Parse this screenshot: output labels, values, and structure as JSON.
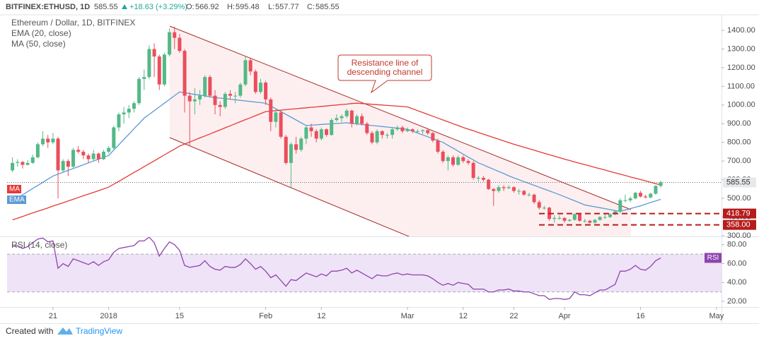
{
  "header": {
    "symbol": "BITFINEX:ETHUSD, 1D",
    "change": "+18.63 (+3.29%)",
    "ohlc_labels": [
      "O:",
      "H:",
      "L:",
      "C:"
    ]
  },
  "annotation": {
    "lines": [
      "Resistance line of",
      "descending channel"
    ]
  },
  "footer": {
    "prefix": "Created with",
    "brand": "TradingView"
  },
  "chart_data": {
    "type": "candlestick",
    "title": "Ethereum / Dollar, 1D, BITFINEX",
    "up_color": "#53b987",
    "down_color": "#eb4d5c",
    "ylim": [
      300,
      1470
    ],
    "yticks": [
      {
        "value": 300,
        "label": "300.00"
      },
      {
        "value": 400,
        "label": "400.00"
      },
      {
        "value": 500,
        "label": "500.00"
      },
      {
        "value": 600,
        "label": "600.00"
      },
      {
        "value": 700,
        "label": "700.00"
      },
      {
        "value": 800,
        "label": "800.00"
      },
      {
        "value": 900,
        "label": "900.00"
      },
      {
        "value": 1000,
        "label": "1000.00"
      },
      {
        "value": 1100,
        "label": "1100.00"
      },
      {
        "value": 1200,
        "label": "1200.00"
      },
      {
        "value": 1300,
        "label": "1300.00"
      },
      {
        "value": 1400,
        "label": "1400.00"
      }
    ],
    "grid": false,
    "hlines": [
      418.79,
      {
        "value": 358,
        "label": "358.00"
      }
    ],
    "hline_color": "#b71c1c",
    "categories": [
      null,
      null,
      null,
      null,
      null,
      null,
      null,
      null,
      "21",
      null,
      null,
      null,
      null,
      null,
      null,
      null,
      null,
      null,
      null,
      "2018",
      null,
      null,
      null,
      null,
      null,
      null,
      null,
      null,
      null,
      null,
      null,
      null,
      null,
      "15",
      null,
      null,
      null,
      null,
      null,
      null,
      null,
      null,
      null,
      null,
      null,
      null,
      null,
      null,
      null,
      null,
      "Feb",
      null,
      null,
      null,
      null,
      null,
      null,
      null,
      null,
      null,
      null,
      "12",
      null,
      null,
      null,
      null,
      null,
      null,
      null,
      null,
      null,
      null,
      null,
      null,
      null,
      null,
      null,
      null,
      "Mar",
      null,
      null,
      null,
      null,
      null,
      null,
      null,
      null,
      null,
      null,
      "12",
      null,
      null,
      null,
      null,
      null,
      null,
      null,
      null,
      null,
      "22",
      null,
      null,
      null,
      null,
      null,
      null,
      null,
      null,
      null,
      "Apr",
      null,
      null,
      null,
      null,
      null,
      null,
      null,
      null,
      null,
      null,
      null,
      null,
      null,
      null,
      "16",
      null,
      null,
      null,
      null,
      null,
      null,
      null,
      null,
      null,
      null,
      null,
      null,
      null,
      null,
      "May",
      null
    ],
    "open": [
      650,
      690,
      695,
      680,
      690,
      720,
      790,
      820,
      800,
      820,
      650,
      700,
      670,
      760,
      750,
      730,
      710,
      740,
      710,
      750,
      770,
      880,
      950,
      960,
      980,
      1010,
      1140,
      1150,
      1300,
      1260,
      1110,
      1270,
      1390,
      1360,
      1290,
      1050,
      1020,
      1030,
      1050,
      1150,
      1050,
      1000,
      990,
      1060,
      1050,
      1050,
      1110,
      1240,
      1180,
      1070,
      1120,
      1030,
      910,
      960,
      830,
      690,
      790,
      760,
      820,
      880,
      860,
      820,
      870,
      840,
      920,
      930,
      940,
      970,
      900,
      940,
      900,
      850,
      800,
      860,
      840,
      840,
      870,
      880,
      860,
      870,
      860,
      860,
      865,
      850,
      810,
      750,
      700,
      720,
      680,
      720,
      700,
      690,
      610,
      610,
      600,
      550,
      540,
      560,
      555,
      560,
      540,
      540,
      520,
      520,
      480,
      450,
      450,
      390,
      395,
      395,
      380,
      385,
      415,
      380,
      380,
      370,
      385,
      400,
      400,
      415,
      430,
      490,
      490,
      500,
      530,
      510,
      505,
      525,
      566.92,
      null,
      null,
      null,
      null,
      null,
      null,
      null,
      null,
      null,
      null,
      null,
      null
    ],
    "high": [
      720,
      710,
      700,
      705,
      735,
      800,
      860,
      840,
      850,
      830,
      710,
      710,
      770,
      780,
      760,
      740,
      760,
      745,
      760,
      780,
      890,
      960,
      990,
      1000,
      1020,
      1150,
      1190,
      1320,
      1330,
      1270,
      1280,
      1410,
      1420,
      1380,
      1300,
      1070,
      1090,
      1080,
      1160,
      1160,
      1080,
      1020,
      1070,
      1080,
      1070,
      1120,
      1260,
      1250,
      1190,
      1140,
      1130,
      1040,
      980,
      970,
      840,
      800,
      830,
      830,
      890,
      900,
      870,
      880,
      875,
      930,
      950,
      950,
      980,
      975,
      950,
      955,
      910,
      860,
      870,
      865,
      850,
      880,
      890,
      890,
      880,
      875,
      870,
      870,
      870,
      855,
      820,
      760,
      730,
      730,
      730,
      730,
      710,
      700,
      620,
      620,
      605,
      555,
      570,
      570,
      570,
      565,
      550,
      545,
      530,
      525,
      490,
      460,
      455,
      410,
      410,
      400,
      390,
      420,
      420,
      390,
      385,
      390,
      405,
      420,
      420,
      435,
      500,
      520,
      510,
      535,
      540,
      520,
      530,
      570,
      595.48,
      null,
      null,
      null,
      null,
      null,
      null,
      null,
      null,
      null,
      null,
      null,
      null
    ],
    "low": [
      640,
      670,
      660,
      675,
      685,
      715,
      780,
      770,
      790,
      500,
      640,
      620,
      660,
      740,
      710,
      690,
      700,
      690,
      705,
      740,
      760,
      860,
      900,
      930,
      960,
      1000,
      1080,
      1140,
      1150,
      1080,
      1100,
      1260,
      1300,
      1280,
      960,
      780,
      950,
      1000,
      1040,
      1040,
      950,
      940,
      980,
      1030,
      1010,
      1040,
      1100,
      1160,
      1060,
      1060,
      1000,
      860,
      880,
      820,
      680,
      560,
      740,
      750,
      790,
      830,
      800,
      810,
      830,
      835,
      910,
      910,
      930,
      880,
      890,
      890,
      840,
      790,
      790,
      820,
      820,
      820,
      860,
      850,
      855,
      850,
      850,
      845,
      840,
      800,
      740,
      690,
      650,
      670,
      675,
      690,
      680,
      600,
      590,
      590,
      545,
      460,
      530,
      540,
      550,
      530,
      520,
      515,
      510,
      470,
      440,
      440,
      380,
      370,
      385,
      370,
      375,
      380,
      375,
      370,
      365,
      365,
      380,
      390,
      395,
      410,
      420,
      480,
      480,
      495,
      505,
      500,
      500,
      520,
      557.77,
      null,
      null,
      null,
      null,
      null,
      null,
      null,
      null,
      null,
      null,
      null,
      null
    ],
    "close": [
      690,
      695,
      680,
      690,
      720,
      790,
      820,
      800,
      820,
      650,
      700,
      670,
      760,
      750,
      730,
      710,
      740,
      710,
      750,
      770,
      880,
      950,
      960,
      980,
      1010,
      1140,
      1150,
      1300,
      1260,
      1110,
      1270,
      1390,
      1360,
      1290,
      1050,
      1020,
      1030,
      1050,
      1150,
      1050,
      1000,
      990,
      1060,
      1050,
      1050,
      1110,
      1240,
      1180,
      1070,
      1120,
      1030,
      910,
      960,
      830,
      690,
      790,
      760,
      820,
      880,
      860,
      820,
      870,
      840,
      920,
      930,
      940,
      970,
      900,
      940,
      900,
      850,
      800,
      860,
      840,
      840,
      870,
      880,
      860,
      870,
      860,
      860,
      865,
      850,
      810,
      750,
      700,
      720,
      680,
      720,
      700,
      690,
      610,
      610,
      600,
      550,
      540,
      560,
      555,
      560,
      540,
      540,
      520,
      520,
      480,
      450,
      450,
      390,
      395,
      395,
      380,
      385,
      415,
      380,
      380,
      370,
      385,
      400,
      400,
      415,
      430,
      490,
      490,
      500,
      530,
      510,
      505,
      525,
      566.92,
      585.55,
      null,
      null,
      null,
      null,
      null,
      null,
      null,
      null,
      null,
      null,
      null,
      null
    ],
    "lines": [
      {
        "name": "EMA (20, close)",
        "tag": "EMA",
        "color": "#5b9bd5",
        "values": [
          485,
          502,
          519,
          536,
          553,
          569,
          586,
          603,
          620,
          630,
          640,
          650,
          660,
          670,
          680,
          690,
          700,
          710,
          720,
          730,
          759,
          787,
          816,
          844,
          873,
          901,
          930,
          950,
          970,
          990,
          1010,
          1030,
          1050,
          1070,
          1066,
          1061,
          1057,
          1053,
          1049,
          1044,
          1040,
          1037,
          1034,
          1031,
          1028,
          1025,
          1022,
          1019,
          1016,
          1013,
          1010,
          995,
          980,
          965,
          950,
          935,
          920,
          905,
          890,
          892,
          894,
          896,
          898,
          899,
          901,
          903,
          905,
          902,
          899,
          896,
          893,
          890,
          888,
          885,
          882,
          879,
          876,
          873,
          870,
          860,
          850,
          840,
          830,
          820,
          810,
          800,
          784,
          769,
          753,
          737,
          721,
          706,
          690,
          679,
          667,
          656,
          644,
          633,
          621,
          610,
          600,
          590,
          580,
          570,
          560,
          550,
          540,
          530,
          520,
          509,
          498,
          487,
          476,
          465,
          460,
          455,
          450,
          445,
          440,
          435,
          430,
          438,
          445,
          453,
          460,
          469,
          478,
          486,
          495,
          null,
          null,
          null,
          null,
          null,
          null,
          null,
          null,
          null,
          null,
          null,
          null
        ]
      },
      {
        "name": "MA (50, close)",
        "tag": "MA",
        "color": "#e53935",
        "values": [
          385,
          394,
          403,
          413,
          422,
          431,
          440,
          449,
          459,
          468,
          477,
          486,
          495,
          505,
          514,
          523,
          532,
          541,
          551,
          560,
          576,
          591,
          607,
          623,
          639,
          654,
          670,
          686,
          701,
          717,
          733,
          749,
          764,
          780,
          791,
          802,
          813,
          824,
          834,
          845,
          856,
          867,
          878,
          889,
          900,
          911,
          922,
          932,
          943,
          954,
          965,
          968,
          970,
          973,
          975,
          978,
          980,
          983,
          985,
          988,
          990,
          993,
          995,
          998,
          1000,
          1003,
          1005,
          1008,
          1010,
          1008,
          1006,
          1004,
          1002,
          1000,
          998,
          996,
          994,
          992,
          990,
          980,
          970,
          960,
          950,
          940,
          930,
          920,
          910,
          900,
          890,
          880,
          871,
          862,
          853,
          844,
          835,
          826,
          817,
          808,
          799,
          790,
          782,
          774,
          766,
          758,
          750,
          742,
          734,
          726,
          718,
          710,
          703,
          695,
          688,
          681,
          674,
          666,
          659,
          652,
          644,
          637,
          630,
          623,
          615,
          608,
          601,
          594,
          586,
          579,
          572,
          null,
          null,
          null,
          null,
          null,
          null,
          null,
          null,
          null,
          null,
          null,
          null
        ]
      }
    ],
    "rsi": {
      "name": "RSI (14, close)",
      "tag": "RSI",
      "color": "#8e44ad",
      "band": [
        30,
        70
      ],
      "band_color": "#efe3f7",
      "ylim": [
        14,
        88
      ],
      "yticks": [
        {
          "value": 20,
          "label": "20.00"
        },
        {
          "value": 40,
          "label": "40.00"
        },
        {
          "value": 60,
          "label": "60.00"
        },
        {
          "value": 80,
          "label": "80.00"
        }
      ],
      "values": [
        78,
        79,
        76,
        78,
        82,
        86,
        87,
        83,
        84,
        55,
        60,
        57,
        65,
        63,
        61,
        59,
        62,
        58,
        62,
        64,
        72,
        76,
        77,
        78,
        79,
        84,
        84,
        88,
        82,
        68,
        76,
        83,
        80,
        74,
        58,
        56,
        57,
        58,
        63,
        57,
        54,
        53,
        57,
        56,
        56,
        59,
        65,
        60,
        54,
        57,
        52,
        45,
        48,
        42,
        36,
        43,
        42,
        46,
        50,
        48,
        46,
        49,
        47,
        52,
        52,
        53,
        55,
        50,
        53,
        50,
        47,
        44,
        48,
        47,
        47,
        49,
        50,
        48,
        49,
        48,
        48,
        48,
        47,
        44,
        40,
        37,
        39,
        37,
        40,
        39,
        38,
        33,
        33,
        33,
        30,
        30,
        32,
        32,
        33,
        31,
        31,
        30,
        30,
        28,
        26,
        26,
        22,
        23,
        23,
        22,
        23,
        30,
        27,
        27,
        26,
        29,
        32,
        32,
        35,
        38,
        52,
        52,
        54,
        58,
        54,
        53,
        57,
        63,
        66,
        null,
        null,
        null,
        null,
        null,
        null,
        null,
        null,
        null,
        null,
        null,
        null
      ]
    }
  }
}
